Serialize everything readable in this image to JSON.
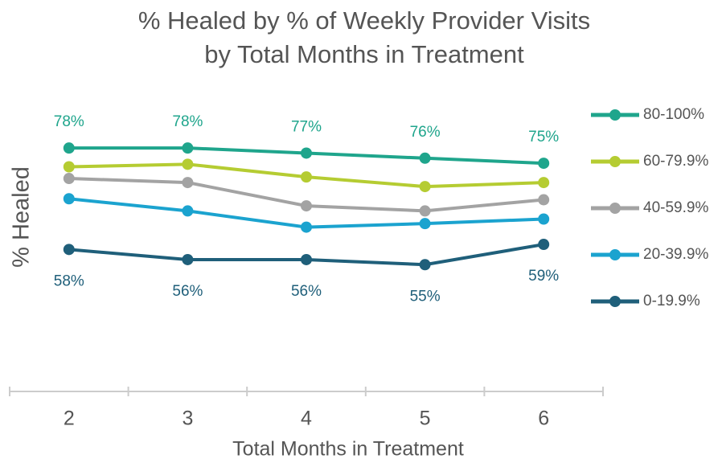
{
  "chart_data": {
    "type": "line",
    "title": [
      "% Healed by % of Weekly Provider Visits",
      "by Total Months in Treatment"
    ],
    "x_label": "Total Months in Treatment",
    "y_label": "% Healed",
    "categories": [
      "2",
      "3",
      "4",
      "5",
      "6"
    ],
    "ylim": [
      30,
      85
    ],
    "legend": "right",
    "series": [
      {
        "name": "80-100%",
        "color": "#1fa58c",
        "values": [
          78,
          78,
          77,
          76,
          75
        ],
        "value_labels": [
          "78%",
          "78%",
          "77%",
          "76%",
          "75%"
        ]
      },
      {
        "name": "60-79.9%",
        "color": "#b5cc32",
        "values": [
          74.3,
          74.8,
          72.3,
          70.4,
          71.2
        ]
      },
      {
        "name": "40-59.9%",
        "color": "#a3a3a3",
        "values": [
          72.0,
          71.2,
          66.6,
          65.6,
          67.8
        ]
      },
      {
        "name": "20-39.9%",
        "color": "#1ba3cf",
        "values": [
          68.0,
          65.6,
          62.4,
          63.1,
          64.0
        ]
      },
      {
        "name": "0-19.9%",
        "color": "#1f5f7a",
        "values": [
          58,
          56,
          56,
          55,
          59
        ],
        "value_labels": [
          "58%",
          "56%",
          "56%",
          "55%",
          "59%"
        ]
      }
    ]
  }
}
